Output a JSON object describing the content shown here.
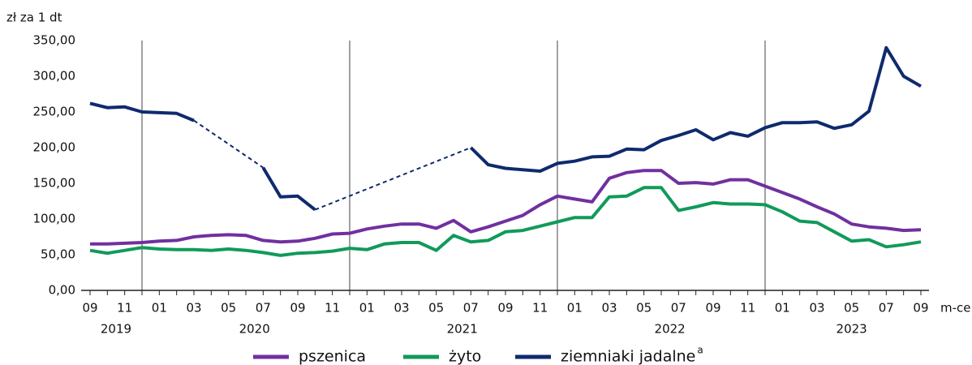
{
  "chart_data": {
    "type": "line",
    "y_axis_label": "zł za 1 dt",
    "x_axis_label": "m-ce",
    "categories": [
      "09",
      null,
      "11",
      null,
      "01",
      null,
      "03",
      null,
      "05",
      null,
      "07",
      null,
      "09",
      null,
      "11",
      null,
      "01",
      null,
      "03",
      null,
      "05",
      null,
      "07",
      null,
      "09",
      null,
      "11",
      null,
      "01",
      null,
      "03",
      null,
      "05",
      null,
      "07",
      null,
      "09",
      null,
      "11",
      null,
      "01",
      null,
      "03",
      null,
      "05",
      null,
      "07",
      null,
      "09"
    ],
    "years": [
      "2019",
      "2020",
      "2021",
      "2022",
      "2023"
    ],
    "ylim": [
      0,
      350
    ],
    "yticks": [
      {
        "value": 0,
        "label": "0,00"
      },
      {
        "value": 50,
        "label": "50,00"
      },
      {
        "value": 100,
        "label": "100,00"
      },
      {
        "value": 150,
        "label": "150,00"
      },
      {
        "value": 200,
        "label": "200,00"
      },
      {
        "value": 250,
        "label": "250,00"
      },
      {
        "value": 300,
        "label": "300,00"
      },
      {
        "value": 350,
        "label": "350,00"
      }
    ],
    "grid": false,
    "legend": "bottom",
    "series": [
      {
        "name": "pszenica",
        "color": "#7030a0",
        "values": [
          65,
          65,
          66,
          67,
          69,
          70,
          75,
          77,
          78,
          77,
          70,
          68,
          69,
          73,
          79,
          80,
          86,
          90,
          93,
          93,
          87,
          98,
          82,
          89,
          97,
          105,
          120,
          132,
          128,
          124,
          157,
          165,
          168,
          168,
          150,
          151,
          149,
          155,
          155,
          146,
          137,
          128,
          117,
          107,
          93,
          89,
          87,
          84,
          85
        ]
      },
      {
        "name": "żyto",
        "color": "#119a5b",
        "values": [
          56,
          52,
          56,
          60,
          58,
          57,
          57,
          56,
          58,
          56,
          53,
          49,
          52,
          53,
          55,
          59,
          57,
          65,
          67,
          67,
          56,
          77,
          68,
          70,
          82,
          84,
          90,
          96,
          102,
          102,
          131,
          132,
          144,
          144,
          112,
          117,
          123,
          121,
          121,
          120,
          110,
          97,
          95,
          82,
          69,
          71,
          61,
          64,
          68
        ]
      },
      {
        "name": "ziemniaki jadalne",
        "name_superscript": "a",
        "color": "#0f2a6e",
        "gap_style": "dashed",
        "values": [
          262,
          256,
          257,
          250,
          249,
          248,
          238,
          null,
          null,
          null,
          172,
          131,
          132,
          113,
          null,
          null,
          null,
          null,
          null,
          null,
          null,
          null,
          200,
          176,
          171,
          169,
          167,
          178,
          181,
          187,
          188,
          198,
          197,
          210,
          217,
          225,
          211,
          221,
          216,
          228,
          235,
          235,
          236,
          227,
          232,
          251,
          340,
          300,
          286
        ]
      }
    ]
  }
}
